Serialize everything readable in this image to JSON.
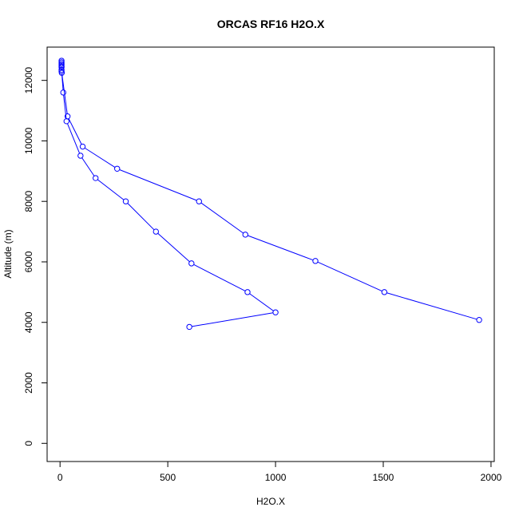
{
  "chart_data": {
    "type": "line",
    "title": "ORCAS RF16 H2O.X",
    "xlabel": "H2O.X",
    "ylabel": "Altitude (m)",
    "xlim": [
      -60,
      2015
    ],
    "ylim": [
      -600,
      13100
    ],
    "xticks": [
      0,
      500,
      1000,
      1500,
      2000
    ],
    "yticks": [
      0,
      2000,
      4000,
      6000,
      8000,
      10000,
      12000
    ],
    "grid": false,
    "series_color": "#0000ff",
    "series": [
      {
        "marker": "open-circle",
        "x": [
          600,
          1000,
          870,
          610,
          445,
          305,
          165,
          95,
          30,
          15,
          8,
          7,
          7,
          7,
          7,
          7,
          7,
          7,
          7,
          35,
          105,
          265,
          645,
          860,
          1185,
          1505,
          1945
        ],
        "y": [
          3850,
          4330,
          5000,
          5950,
          7000,
          8000,
          8770,
          9510,
          10650,
          11600,
          12250,
          12350,
          12440,
          12500,
          12550,
          12600,
          12650,
          12450,
          12300,
          10810,
          9810,
          9080,
          8000,
          6900,
          6030,
          5000,
          4080
        ]
      }
    ]
  }
}
